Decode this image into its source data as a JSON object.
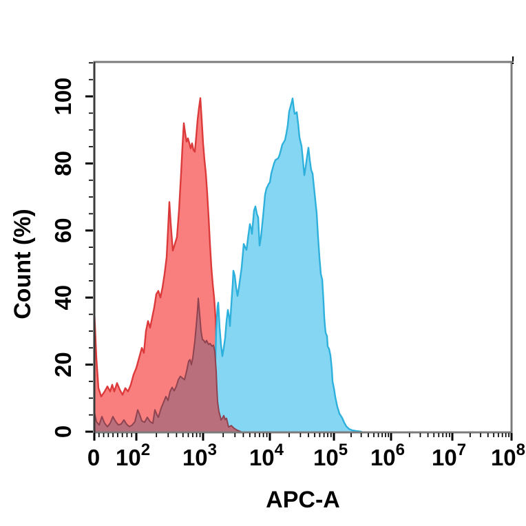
{
  "figure": {
    "background": "#ffffff"
  },
  "artifact_mark": {
    "text": "!"
  },
  "chart_data": {
    "type": "area",
    "subtype": "flow-cytometry-histogram-overlay",
    "title": "",
    "xlabel": "APC-A",
    "ylabel": "Count  (%)",
    "x_scale": "biexponential-log",
    "x_axis_note": "x positions stored as fraction 0-1 across axis; ticks at 0 and 10^2..10^8",
    "ylim": [
      0,
      110
    ],
    "grid": false,
    "legend": "none",
    "x_ticks": [
      {
        "base": "0",
        "exp": "",
        "frac": 0.0
      },
      {
        "base": "10",
        "exp": "2",
        "frac": 0.1007
      },
      {
        "base": "10",
        "exp": "3",
        "frac": 0.2607
      },
      {
        "base": "10",
        "exp": "4",
        "frac": 0.4208
      },
      {
        "base": "10",
        "exp": "5",
        "frac": 0.5743
      },
      {
        "base": "10",
        "exp": "6",
        "frac": 0.7112
      },
      {
        "base": "10",
        "exp": "7",
        "frac": 0.8581
      },
      {
        "base": "10",
        "exp": "8",
        "frac": 1.0
      }
    ],
    "y_ticks": [
      {
        "label": "0",
        "pct": 0
      },
      {
        "label": "20",
        "pct": 20
      },
      {
        "label": "40",
        "pct": 40
      },
      {
        "label": "60",
        "pct": 60
      },
      {
        "label": "80",
        "pct": 80
      },
      {
        "label": "100",
        "pct": 100
      }
    ],
    "y_minor_step_pct": 5,
    "y_minor_max_pct": 110,
    "colors": {
      "frame": "#7b7b7b",
      "spine_left": "#3a3a3a",
      "tick": "#000000",
      "text": "#000000"
    },
    "series": [
      {
        "name": "red-histogram",
        "peak_x": "~7e2",
        "peak_pct": 100,
        "fill": "#F97F7F",
        "stroke": "#DC3A3A",
        "stroke_width": 2.4,
        "points": [
          [
            0.0,
            36
          ],
          [
            0.005,
            22
          ],
          [
            0.0099,
            13
          ],
          [
            0.0165,
            10.5
          ],
          [
            0.0248,
            12
          ],
          [
            0.0314,
            13.5
          ],
          [
            0.038,
            12
          ],
          [
            0.0429,
            14
          ],
          [
            0.0479,
            12
          ],
          [
            0.0545,
            14.5
          ],
          [
            0.0611,
            12.5
          ],
          [
            0.0677,
            11
          ],
          [
            0.0743,
            13
          ],
          [
            0.0809,
            12
          ],
          [
            0.0875,
            14
          ],
          [
            0.0941,
            17
          ],
          [
            0.1007,
            19
          ],
          [
            0.1073,
            22
          ],
          [
            0.1139,
            25
          ],
          [
            0.1188,
            23.5
          ],
          [
            0.1238,
            30
          ],
          [
            0.1287,
            33
          ],
          [
            0.1337,
            31
          ],
          [
            0.1386,
            34
          ],
          [
            0.1436,
            37
          ],
          [
            0.1485,
            41
          ],
          [
            0.1535,
            42
          ],
          [
            0.1584,
            40
          ],
          [
            0.1634,
            43
          ],
          [
            0.1683,
            47
          ],
          [
            0.1733,
            52
          ],
          [
            0.1766,
            60
          ],
          [
            0.1799,
            68.5
          ],
          [
            0.1832,
            62
          ],
          [
            0.1881,
            54
          ],
          [
            0.1931,
            56
          ],
          [
            0.198,
            58
          ],
          [
            0.203,
            66
          ],
          [
            0.2079,
            77
          ],
          [
            0.2112,
            85
          ],
          [
            0.2145,
            92
          ],
          [
            0.2178,
            89
          ],
          [
            0.2211,
            86.5
          ],
          [
            0.2244,
            87.5
          ],
          [
            0.2277,
            86
          ],
          [
            0.231,
            84.5
          ],
          [
            0.2343,
            86
          ],
          [
            0.2376,
            84
          ],
          [
            0.2409,
            83.5
          ],
          [
            0.2442,
            88
          ],
          [
            0.2475,
            93
          ],
          [
            0.2508,
            96.5
          ],
          [
            0.2541,
            99.5
          ],
          [
            0.2574,
            93
          ],
          [
            0.2607,
            86
          ],
          [
            0.264,
            81
          ],
          [
            0.2673,
            77
          ],
          [
            0.2706,
            71
          ],
          [
            0.2739,
            64
          ],
          [
            0.2772,
            56
          ],
          [
            0.2805,
            49
          ],
          [
            0.2838,
            44
          ],
          [
            0.2871,
            40
          ],
          [
            0.2904,
            34
          ],
          [
            0.2921,
            27
          ],
          [
            0.2937,
            20
          ],
          [
            0.2954,
            14
          ],
          [
            0.297,
            9
          ],
          [
            0.3003,
            5.5
          ],
          [
            0.3036,
            4.5
          ],
          [
            0.3069,
            5
          ],
          [
            0.3102,
            6
          ],
          [
            0.3135,
            4.5
          ],
          [
            0.3168,
            5.2
          ],
          [
            0.3201,
            3.2
          ],
          [
            0.3251,
            2.2
          ],
          [
            0.33,
            2.6
          ],
          [
            0.335,
            1.6
          ],
          [
            0.3416,
            2.2
          ],
          [
            0.3482,
            1.2
          ],
          [
            0.3548,
            0.6
          ],
          [
            0.3614,
            0
          ]
        ]
      },
      {
        "name": "blue-histogram",
        "peak_x": "~2e4",
        "peak_pct": 100,
        "fill": "#85D6F2",
        "stroke": "#2EB0DC",
        "stroke_width": 2.4,
        "points": [
          [
            0.2822,
            0
          ],
          [
            0.2855,
            3
          ],
          [
            0.2888,
            14
          ],
          [
            0.2921,
            30
          ],
          [
            0.2954,
            37.5
          ],
          [
            0.297,
            38.5
          ],
          [
            0.3003,
            31
          ],
          [
            0.3036,
            26
          ],
          [
            0.3069,
            22.5
          ],
          [
            0.3102,
            25
          ],
          [
            0.3135,
            28
          ],
          [
            0.3168,
            33
          ],
          [
            0.3201,
            36.3
          ],
          [
            0.3234,
            34
          ],
          [
            0.3251,
            31.5
          ],
          [
            0.3284,
            38
          ],
          [
            0.3317,
            44
          ],
          [
            0.3333,
            48
          ],
          [
            0.3366,
            46.5
          ],
          [
            0.3399,
            43
          ],
          [
            0.3432,
            40.5
          ],
          [
            0.3465,
            43
          ],
          [
            0.3498,
            46
          ],
          [
            0.3531,
            49
          ],
          [
            0.3581,
            56
          ],
          [
            0.3614,
            55
          ],
          [
            0.3647,
            54.2
          ],
          [
            0.3696,
            59
          ],
          [
            0.3729,
            61.9
          ],
          [
            0.3762,
            60.5
          ],
          [
            0.3779,
            59
          ],
          [
            0.3828,
            66
          ],
          [
            0.3861,
            67.2
          ],
          [
            0.3894,
            65
          ],
          [
            0.3927,
            63.9
          ],
          [
            0.396,
            55.5
          ],
          [
            0.3993,
            58
          ],
          [
            0.4043,
            64
          ],
          [
            0.4092,
            70.7
          ],
          [
            0.4125,
            72.5
          ],
          [
            0.4175,
            73.8
          ],
          [
            0.4208,
            74.4
          ],
          [
            0.4241,
            77
          ],
          [
            0.4274,
            78.5
          ],
          [
            0.4307,
            80
          ],
          [
            0.434,
            81
          ],
          [
            0.4373,
            81.3
          ],
          [
            0.4406,
            81.5
          ],
          [
            0.4439,
            82.5
          ],
          [
            0.4472,
            84
          ],
          [
            0.4505,
            85.6
          ],
          [
            0.4538,
            86.3
          ],
          [
            0.4571,
            87
          ],
          [
            0.4604,
            89
          ],
          [
            0.4637,
            91.5
          ],
          [
            0.467,
            95.5
          ],
          [
            0.4703,
            97
          ],
          [
            0.4736,
            98.5
          ],
          [
            0.4752,
            99.4
          ],
          [
            0.4785,
            96
          ],
          [
            0.4802,
            94.8
          ],
          [
            0.4835,
            95
          ],
          [
            0.4851,
            95.3
          ],
          [
            0.4884,
            92
          ],
          [
            0.4917,
            87.8
          ],
          [
            0.495,
            86
          ],
          [
            0.4967,
            85.2
          ],
          [
            0.5,
            81
          ],
          [
            0.5033,
            76.5
          ],
          [
            0.5066,
            79
          ],
          [
            0.5099,
            82
          ],
          [
            0.5132,
            84.7
          ],
          [
            0.5165,
            81
          ],
          [
            0.5198,
            78
          ],
          [
            0.5231,
            77
          ],
          [
            0.5264,
            73
          ],
          [
            0.5297,
            69
          ],
          [
            0.533,
            65
          ],
          [
            0.5363,
            58
          ],
          [
            0.5396,
            52
          ],
          [
            0.5429,
            47
          ],
          [
            0.5462,
            45.4
          ],
          [
            0.5495,
            38.4
          ],
          [
            0.5512,
            34
          ],
          [
            0.5528,
            31.5
          ],
          [
            0.5545,
            29.5
          ],
          [
            0.5578,
            28.5
          ],
          [
            0.5594,
            25.4
          ],
          [
            0.5627,
            24.7
          ],
          [
            0.566,
            22.7
          ],
          [
            0.5693,
            18.6
          ],
          [
            0.571,
            15
          ],
          [
            0.5743,
            13
          ],
          [
            0.5776,
            10.3
          ],
          [
            0.5825,
            7.4
          ],
          [
            0.5875,
            5.4
          ],
          [
            0.5941,
            4.1
          ],
          [
            0.599,
            2.7
          ],
          [
            0.604,
            1.6
          ],
          [
            0.6106,
            0.8
          ],
          [
            0.6188,
            0.4
          ],
          [
            0.6287,
            0.2
          ],
          [
            0.6403,
            0
          ]
        ]
      },
      {
        "name": "overlap-histogram",
        "peak_x": "~6e2",
        "peak_pct": 40,
        "fill": "#B96F7C",
        "stroke": "#8E4450",
        "stroke_width": 2,
        "points": [
          [
            0.0,
            6
          ],
          [
            0.005,
            3
          ],
          [
            0.0116,
            2
          ],
          [
            0.0182,
            4.5
          ],
          [
            0.0248,
            2.5
          ],
          [
            0.0314,
            1.5
          ],
          [
            0.038,
            2.5
          ],
          [
            0.0446,
            4.5
          ],
          [
            0.0512,
            3
          ],
          [
            0.0578,
            2
          ],
          [
            0.0644,
            2.3
          ],
          [
            0.071,
            3.5
          ],
          [
            0.0776,
            2.2
          ],
          [
            0.0842,
            1.5
          ],
          [
            0.0908,
            2
          ],
          [
            0.0974,
            3
          ],
          [
            0.104,
            6.5
          ],
          [
            0.1089,
            5
          ],
          [
            0.1139,
            3.2
          ],
          [
            0.1205,
            2.8
          ],
          [
            0.1271,
            4.3
          ],
          [
            0.1337,
            3
          ],
          [
            0.1403,
            2.5
          ],
          [
            0.1452,
            6.5
          ],
          [
            0.1502,
            5
          ],
          [
            0.1535,
            4.3
          ],
          [
            0.1601,
            7
          ],
          [
            0.1667,
            9
          ],
          [
            0.1716,
            10.5
          ],
          [
            0.1766,
            9.3
          ],
          [
            0.1815,
            12
          ],
          [
            0.1865,
            13.2
          ],
          [
            0.1914,
            12.2
          ],
          [
            0.1964,
            13.5
          ],
          [
            0.2013,
            15.5
          ],
          [
            0.2063,
            16.5
          ],
          [
            0.2112,
            16
          ],
          [
            0.2162,
            15.5
          ],
          [
            0.2211,
            18
          ],
          [
            0.2261,
            21
          ],
          [
            0.2294,
            21.5
          ],
          [
            0.2327,
            20
          ],
          [
            0.236,
            22
          ],
          [
            0.2409,
            27
          ],
          [
            0.2442,
            31.5
          ],
          [
            0.2475,
            36.5
          ],
          [
            0.2492,
            39.8
          ],
          [
            0.2525,
            35
          ],
          [
            0.2558,
            30
          ],
          [
            0.2591,
            27.5
          ],
          [
            0.2624,
            27.2
          ],
          [
            0.2657,
            26.5
          ],
          [
            0.269,
            27.2
          ],
          [
            0.2739,
            26
          ],
          [
            0.2772,
            26.3
          ],
          [
            0.2822,
            25.5
          ],
          [
            0.2855,
            25.8
          ],
          [
            0.2888,
            24
          ],
          [
            0.2921,
            18
          ],
          [
            0.2937,
            13
          ],
          [
            0.2954,
            9
          ],
          [
            0.2987,
            6
          ],
          [
            0.302,
            4.5
          ],
          [
            0.3036,
            3.5
          ],
          [
            0.3069,
            4
          ],
          [
            0.3102,
            4.8
          ],
          [
            0.3135,
            3.6
          ],
          [
            0.3168,
            4
          ],
          [
            0.3218,
            1.4
          ],
          [
            0.3284,
            1.8
          ],
          [
            0.335,
            1.0
          ],
          [
            0.3432,
            0.4
          ],
          [
            0.3515,
            0
          ]
        ]
      }
    ]
  }
}
